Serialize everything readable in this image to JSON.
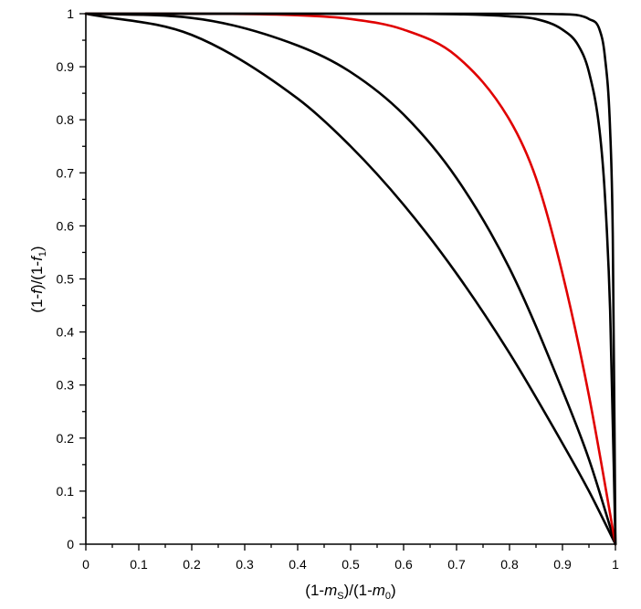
{
  "chart_data": {
    "type": "line",
    "xlabel": {
      "pre": "(1-",
      "var": "m",
      "sub": "S",
      "mid": ")/(1-",
      "var2": "m",
      "sub2": "0",
      "post": ")"
    },
    "ylabel": {
      "pre": "(1-",
      "var": "f",
      "mid": ")/(1-",
      "var2": "f",
      "sub2": "1",
      "post": ")"
    },
    "xlim": [
      0,
      1
    ],
    "ylim": [
      0,
      1
    ],
    "xticks": [
      "0",
      "0.1",
      "0.2",
      "0.3",
      "0.4",
      "0.5",
      "0.6",
      "0.7",
      "0.8",
      "0.9",
      "1"
    ],
    "yticks": [
      "0",
      "0.1",
      "0.2",
      "0.3",
      "0.4",
      "0.5",
      "0.6",
      "0.7",
      "0.8",
      "0.9",
      "1"
    ],
    "grid": false,
    "series": [
      {
        "color": "#000000",
        "x": [
          0,
          0.2,
          0.4,
          0.5,
          0.6,
          0.7,
          0.8,
          0.9,
          0.95,
          1
        ],
        "y": [
          1,
          0.96,
          0.84,
          0.75,
          0.64,
          0.51,
          0.36,
          0.19,
          0.1,
          0
        ]
      },
      {
        "color": "#000000",
        "x": [
          0,
          0.2,
          0.4,
          0.5,
          0.6,
          0.7,
          0.8,
          0.9,
          0.95,
          1
        ],
        "y": [
          1,
          0.992,
          0.94,
          0.89,
          0.81,
          0.69,
          0.52,
          0.29,
          0.16,
          0
        ]
      },
      {
        "color": "#e00000",
        "x": [
          0,
          0.2,
          0.4,
          0.5,
          0.6,
          0.7,
          0.8,
          0.85,
          0.9,
          0.95,
          1
        ],
        "y": [
          1,
          1,
          0.997,
          0.99,
          0.97,
          0.92,
          0.8,
          0.69,
          0.51,
          0.28,
          0
        ]
      },
      {
        "color": "#000000",
        "x": [
          0,
          0.5,
          0.7,
          0.8,
          0.85,
          0.9,
          0.93,
          0.95,
          0.97,
          0.98,
          0.99,
          1
        ],
        "y": [
          1,
          1,
          0.999,
          0.995,
          0.99,
          0.97,
          0.94,
          0.89,
          0.78,
          0.66,
          0.44,
          0
        ]
      },
      {
        "color": "#000000",
        "x": [
          0,
          0.8,
          0.9,
          0.93,
          0.95,
          0.97,
          0.98,
          0.99,
          0.995,
          1
        ],
        "y": [
          1,
          1,
          0.999,
          0.997,
          0.99,
          0.97,
          0.92,
          0.78,
          0.58,
          0
        ]
      }
    ]
  }
}
